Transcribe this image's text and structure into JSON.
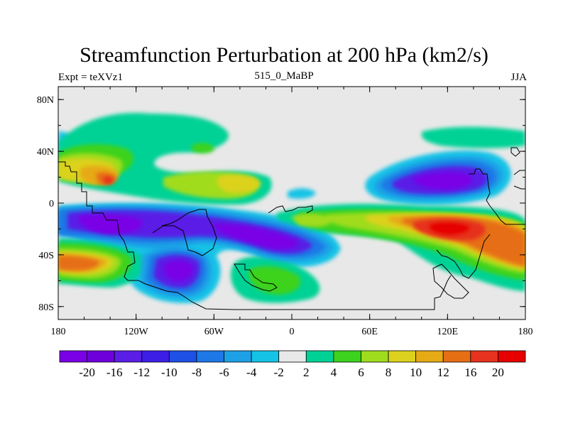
{
  "title": "Streamfunction Perturbation at 200 hPa (km2/s)",
  "left_label": "Expt = teXVz1",
  "center_label": "515_0_MaBP",
  "right_label": "JJA",
  "lon_ticks": [
    "180",
    "120W",
    "60W",
    "0",
    "60E",
    "120E",
    "180"
  ],
  "lat_ticks": [
    "80N",
    "40N",
    "0",
    "40S",
    "80S"
  ],
  "colorbar": {
    "colors": [
      "#7a00e6",
      "#6e00dc",
      "#5a1ee6",
      "#3c1ee6",
      "#1e50e6",
      "#1e78e6",
      "#1ea0e6",
      "#14c3e6",
      "#e8e8e8",
      "#00d296",
      "#3cd21e",
      "#a0dc1e",
      "#dcd21e",
      "#e6aa14",
      "#e66e14",
      "#e6321e",
      "#e60000"
    ],
    "labels": [
      "-20",
      "-16",
      "-12",
      "-10",
      "-8",
      "-6",
      "-4",
      "-2",
      "2",
      "4",
      "6",
      "8",
      "10",
      "12",
      "16",
      "20"
    ]
  },
  "colors": {
    "background": "#e8e8e8",
    "coast": "#000000"
  }
}
